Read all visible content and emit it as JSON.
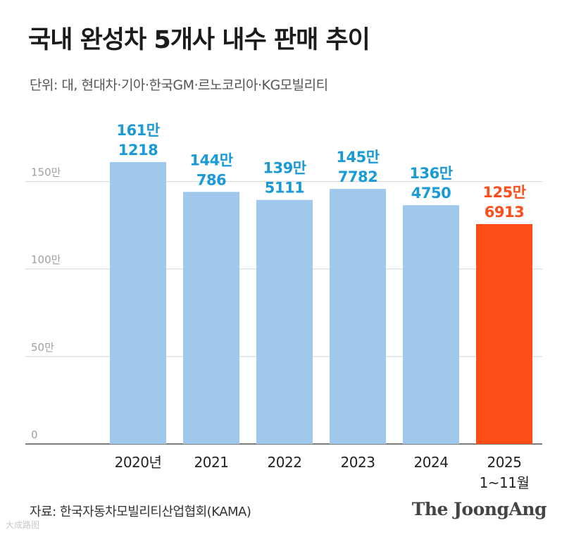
{
  "header": {
    "title": "국내 완성차 5개사 내수 판매 추이",
    "subtitle": "단위: 대, 현대차·기아·한국GM·르노코리아·KG모빌리티"
  },
  "footer": {
    "source": "자료: 한국자동차모빌리티산업협회(KAMA)",
    "brand": "The JoongAng",
    "watermark": "大成路图"
  },
  "colors": {
    "bar": "#9fc8ec",
    "highlight_bar": "#ff4d1a",
    "label": "#1a9ad6",
    "highlight_label": "#ff4d1a",
    "grid": "#d4d4d4",
    "axis_text": "#a0a0a0"
  },
  "chart_data": {
    "type": "bar",
    "categories": [
      "2020년",
      "2021",
      "2022",
      "2023",
      "2024",
      "2025"
    ],
    "category_sublabels": [
      "",
      "",
      "",
      "",
      "",
      "1~11월"
    ],
    "values": [
      1611218,
      1440786,
      1395111,
      1457782,
      1364750,
      1256913
    ],
    "value_labels": [
      [
        "161만",
        "1218"
      ],
      [
        "144만",
        "786"
      ],
      [
        "139만",
        "5111"
      ],
      [
        "145만",
        "7782"
      ],
      [
        "136만",
        "4750"
      ],
      [
        "125만",
        "6913"
      ]
    ],
    "highlight_index": 5,
    "yticks": [
      0,
      500000,
      1000000,
      1500000
    ],
    "ytick_labels": [
      "0",
      "50만",
      "100만",
      "150만"
    ],
    "ylim": [
      0,
      1611218
    ],
    "grid": true,
    "title": "국내 완성차 5개사 내수 판매 추이",
    "xlabel": "",
    "ylabel": "대"
  }
}
